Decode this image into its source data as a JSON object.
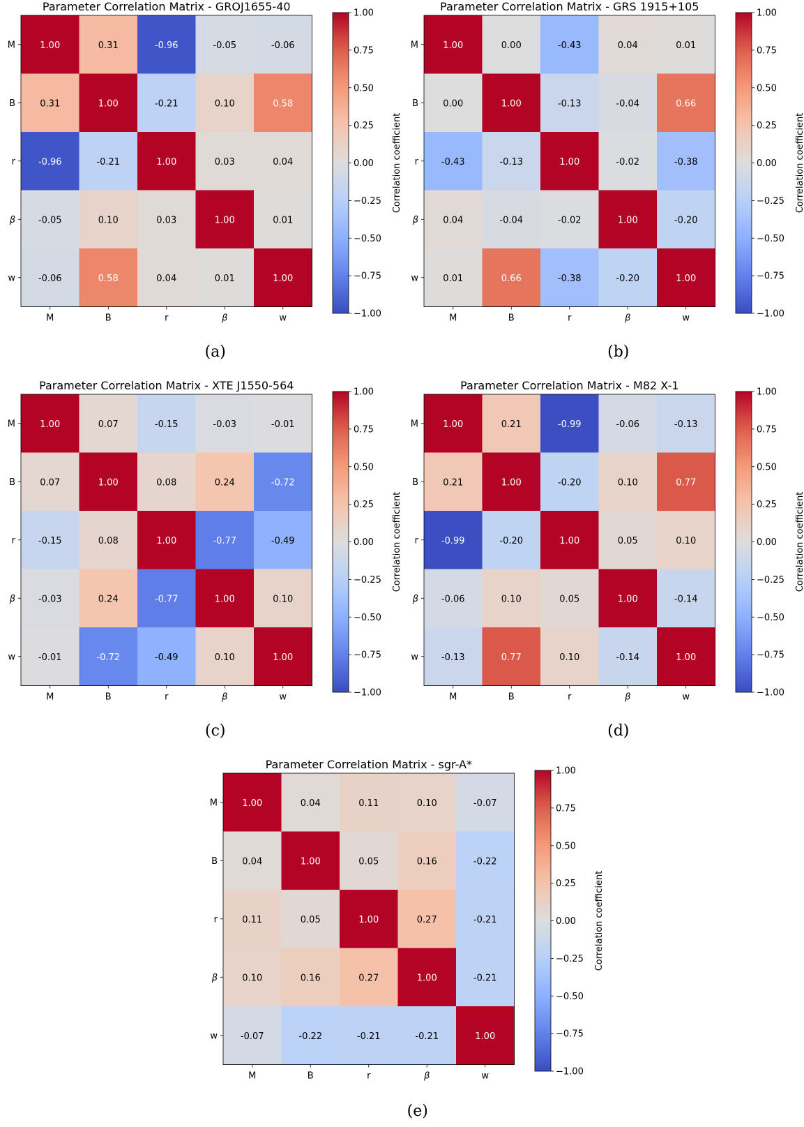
{
  "chart_data": [
    {
      "type": "heatmap",
      "title": "Parameter Correlation Matrix - GROJ1655-40",
      "caption": "(a)",
      "x_labels": [
        "M",
        "B",
        "r",
        "β",
        "w"
      ],
      "y_labels": [
        "M",
        "B",
        "r",
        "β",
        "w"
      ],
      "values": [
        [
          1.0,
          0.31,
          -0.96,
          -0.05,
          -0.06
        ],
        [
          0.31,
          1.0,
          -0.21,
          0.1,
          0.58
        ],
        [
          -0.96,
          -0.21,
          1.0,
          0.03,
          0.04
        ],
        [
          -0.05,
          0.1,
          0.03,
          1.0,
          0.01
        ],
        [
          -0.06,
          0.58,
          0.04,
          0.01,
          1.0
        ]
      ],
      "colorbar": {
        "label": "Correlation coefficient",
        "range": [
          -1.0,
          1.0
        ],
        "ticks": [
          "1.00",
          "0.75",
          "0.50",
          "0.25",
          "0.00",
          "−0.25",
          "−0.50",
          "−0.75",
          "−1.00"
        ],
        "colormap": "coolwarm"
      }
    },
    {
      "type": "heatmap",
      "title": "Parameter Correlation Matrix - GRS 1915+105",
      "caption": "(b)",
      "x_labels": [
        "M",
        "B",
        "r",
        "β",
        "w"
      ],
      "y_labels": [
        "M",
        "B",
        "r",
        "β",
        "w"
      ],
      "values": [
        [
          1.0,
          -0.0,
          -0.43,
          0.04,
          0.01
        ],
        [
          -0.0,
          1.0,
          -0.13,
          -0.04,
          0.66
        ],
        [
          -0.43,
          -0.13,
          1.0,
          -0.02,
          -0.38
        ],
        [
          0.04,
          -0.04,
          -0.02,
          1.0,
          -0.2
        ],
        [
          0.01,
          0.66,
          -0.38,
          -0.2,
          1.0
        ]
      ],
      "colorbar": {
        "label": "Correlation coefficient",
        "range": [
          -1.0,
          1.0
        ],
        "ticks": [
          "1.00",
          "0.75",
          "0.50",
          "0.25",
          "0.00",
          "−0.25",
          "−0.50",
          "−0.75",
          "−1.00"
        ],
        "colormap": "coolwarm"
      }
    },
    {
      "type": "heatmap",
      "title": "Parameter Correlation Matrix - XTE J1550-564",
      "caption": "(c)",
      "x_labels": [
        "M",
        "B",
        "r",
        "β",
        "w"
      ],
      "y_labels": [
        "M",
        "B",
        "r",
        "β",
        "w"
      ],
      "values": [
        [
          1.0,
          0.07,
          -0.15,
          -0.03,
          -0.01
        ],
        [
          0.07,
          1.0,
          0.08,
          0.24,
          -0.72
        ],
        [
          -0.15,
          0.08,
          1.0,
          -0.77,
          -0.49
        ],
        [
          -0.03,
          0.24,
          -0.77,
          1.0,
          0.1
        ],
        [
          -0.01,
          -0.72,
          -0.49,
          0.1,
          1.0
        ]
      ],
      "colorbar": {
        "label": "Correlation coefficient",
        "range": [
          -1.0,
          1.0
        ],
        "ticks": [
          "1.00",
          "0.75",
          "0.50",
          "0.25",
          "0.00",
          "−0.25",
          "−0.50",
          "−0.75",
          "−1.00"
        ],
        "colormap": "coolwarm"
      }
    },
    {
      "type": "heatmap",
      "title": "Parameter Correlation Matrix - M82 X-1",
      "caption": "(d)",
      "x_labels": [
        "M",
        "B",
        "r",
        "β",
        "w"
      ],
      "y_labels": [
        "M",
        "B",
        "r",
        "β",
        "w"
      ],
      "values": [
        [
          1.0,
          0.21,
          -0.99,
          -0.06,
          -0.13
        ],
        [
          0.21,
          1.0,
          -0.2,
          0.1,
          0.77
        ],
        [
          -0.99,
          -0.2,
          1.0,
          0.05,
          0.1
        ],
        [
          -0.06,
          0.1,
          0.05,
          1.0,
          -0.14
        ],
        [
          -0.13,
          0.77,
          0.1,
          -0.14,
          1.0
        ]
      ],
      "colorbar": {
        "label": "Correlation coefficient",
        "range": [
          -1.0,
          1.0
        ],
        "ticks": [
          "1.00",
          "0.75",
          "0.50",
          "0.25",
          "0.00",
          "−0.25",
          "−0.50",
          "−0.75",
          "−1.00"
        ],
        "colormap": "coolwarm"
      }
    },
    {
      "type": "heatmap",
      "title": "Parameter Correlation Matrix - sgr-A*",
      "caption": "(e)",
      "x_labels": [
        "M",
        "B",
        "r",
        "β",
        "w"
      ],
      "y_labels": [
        "M",
        "B",
        "r",
        "β",
        "w"
      ],
      "values": [
        [
          1.0,
          0.04,
          0.11,
          0.1,
          -0.07
        ],
        [
          0.04,
          1.0,
          0.05,
          0.16,
          -0.22
        ],
        [
          0.11,
          0.05,
          1.0,
          0.27,
          -0.21
        ],
        [
          0.1,
          0.16,
          0.27,
          1.0,
          -0.21
        ],
        [
          -0.07,
          -0.22,
          -0.21,
          -0.21,
          1.0
        ]
      ],
      "colorbar": {
        "label": "Correlation coefficient",
        "range": [
          -1.0,
          1.0
        ],
        "ticks": [
          "1.00",
          "0.75",
          "0.50",
          "0.25",
          "0.00",
          "−0.25",
          "−0.50",
          "−0.75",
          "−1.00"
        ],
        "colormap": "coolwarm"
      }
    }
  ]
}
